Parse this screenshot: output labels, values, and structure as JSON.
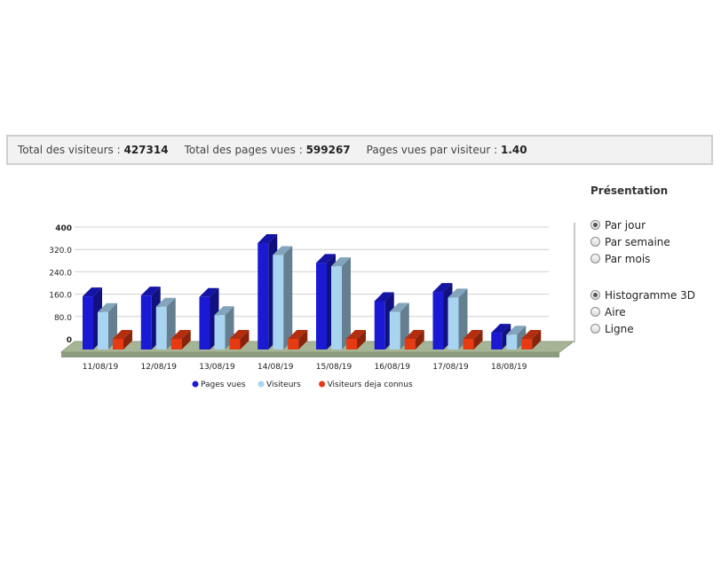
{
  "stats": {
    "visitors_label": "Total des visiteurs : ",
    "visitors_value": "427314",
    "pages_label": "Total des pages vues : ",
    "pages_value": "599267",
    "ratio_label": "Pages vues par visiteur : ",
    "ratio_value": "1.40"
  },
  "panel": {
    "title": "Présentation",
    "period_options": [
      {
        "label": "Par jour",
        "checked": true
      },
      {
        "label": "Par semaine",
        "checked": false
      },
      {
        "label": "Par mois",
        "checked": false
      }
    ],
    "type_options": [
      {
        "label": "Histogramme 3D",
        "checked": true
      },
      {
        "label": "Aire",
        "checked": false
      },
      {
        "label": "Ligne",
        "checked": false
      }
    ]
  },
  "chart_data": {
    "type": "bar",
    "categories": [
      "11/08/19",
      "12/08/19",
      "13/08/19",
      "14/08/19",
      "15/08/19",
      "16/08/19",
      "17/08/19",
      "18/08/19"
    ],
    "series": [
      {
        "name": "Pages vues",
        "color": "#1a1ad4",
        "values": [
          152,
          155,
          150,
          343,
          272,
          135,
          168,
          22
        ]
      },
      {
        "name": "Visiteurs",
        "color": "#a8d4f0",
        "values": [
          96,
          115,
          85,
          300,
          260,
          97,
          148,
          15
        ]
      },
      {
        "name": "Visiteurs deja connus",
        "color": "#e63b12",
        "values": [
          0,
          0,
          0,
          0,
          0,
          0,
          0,
          0
        ]
      }
    ],
    "y_ticks": [
      "0",
      "80.0",
      "160.0",
      "240.0",
      "320.0",
      "400"
    ],
    "ylim": [
      0,
      400
    ],
    "grid": true,
    "legend_position": "bottom"
  }
}
